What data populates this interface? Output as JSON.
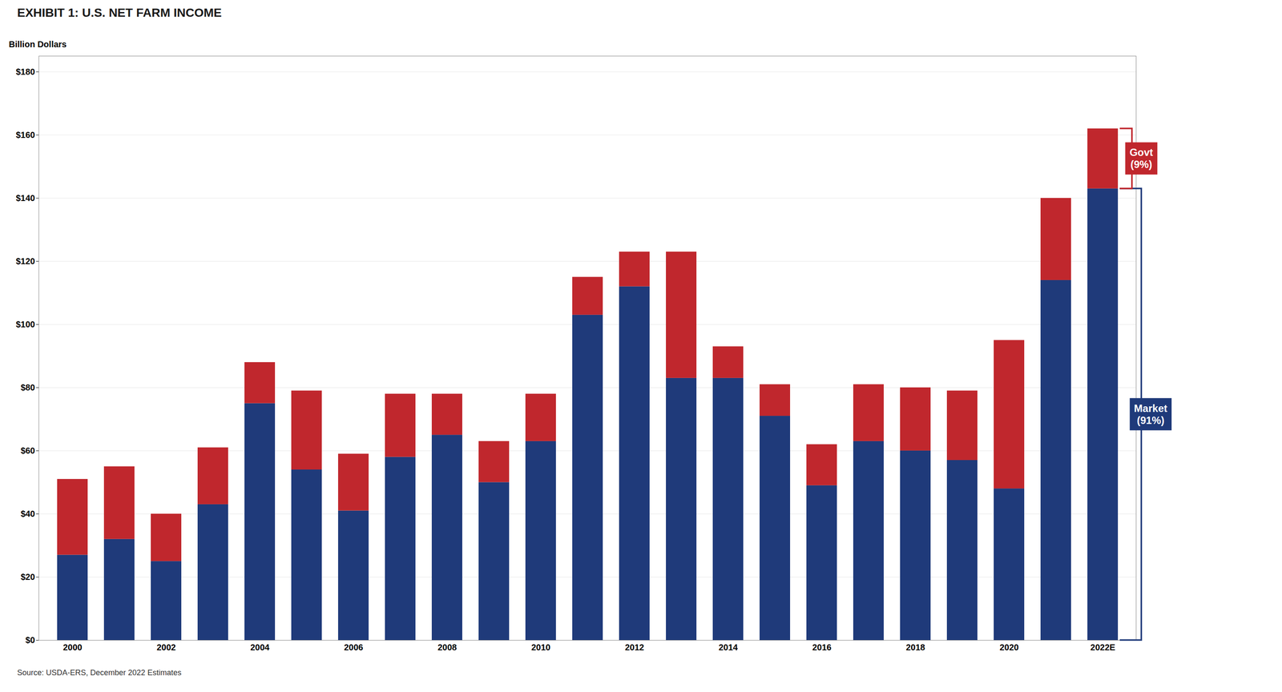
{
  "chart_data": {
    "type": "bar",
    "stacked": true,
    "title": "EXHIBIT 1: U.S. NET FARM INCOME",
    "caption": "Source: USDA-ERS, December 2022 Estimates",
    "ylabel": "Billion Dollars",
    "categories": [
      "2000",
      null,
      "2002",
      null,
      "2004",
      null,
      "2006",
      null,
      "2008",
      null,
      "2010",
      null,
      "2012",
      null,
      "2014",
      null,
      "2016",
      null,
      "2018",
      null,
      "2020",
      null,
      "2022E"
    ],
    "series": [
      {
        "color": "#1F3A7A",
        "values": [
          27,
          32,
          25,
          43,
          75,
          54,
          41,
          58,
          65,
          50,
          63,
          103,
          112,
          83,
          83,
          71,
          49,
          63,
          60,
          57,
          48,
          114,
          143
        ]
      },
      {
        "color": "#C0272D",
        "values": [
          24,
          23,
          15,
          18,
          13,
          25,
          18,
          20,
          13,
          13,
          15,
          12,
          11,
          40,
          10,
          10,
          13,
          18,
          20,
          22,
          47,
          26,
          19
        ]
      }
    ],
    "ylim": [
      0,
      185
    ],
    "yticks": [
      {
        "value": 0,
        "label": "$0"
      },
      {
        "value": 20,
        "label": "$20"
      },
      {
        "value": 40,
        "label": "$40"
      },
      {
        "value": 60,
        "label": "$60"
      },
      {
        "value": 80,
        "label": "$80"
      },
      {
        "value": 100,
        "label": "$100"
      },
      {
        "value": 120,
        "label": "$120"
      },
      {
        "value": 140,
        "label": "$140"
      },
      {
        "value": 160,
        "label": "$160"
      },
      {
        "value": 180,
        "label": "$180"
      }
    ],
    "grid": true,
    "annotations": [
      {
        "text": "Market\n(91%)"
      },
      {
        "text": "Govt\n(9%)"
      }
    ]
  }
}
